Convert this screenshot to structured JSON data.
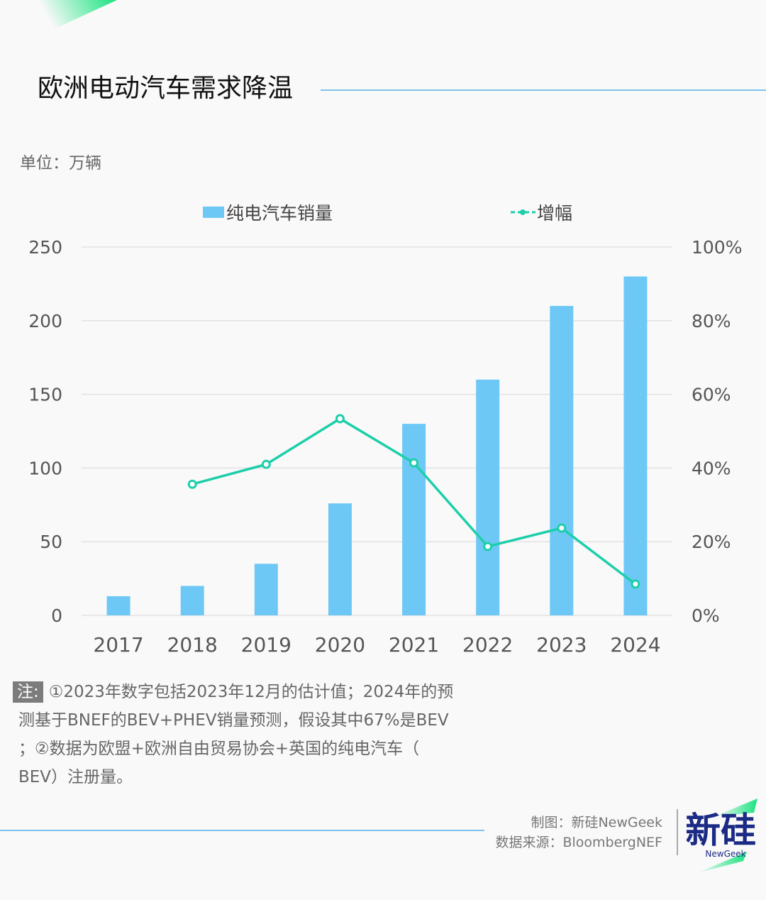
{
  "title": "欧洲电动汽车需求降温",
  "unit_label": "单位：万辆",
  "chart_data": {
    "type": "bar+line",
    "categories": [
      "2017",
      "2018",
      "2019",
      "2020",
      "2021",
      "2022",
      "2023",
      "2024"
    ],
    "series": [
      {
        "name": "纯电汽车销量",
        "type": "bar",
        "axis": "left",
        "color": "#6ec8f5",
        "values": [
          13,
          20,
          35,
          76,
          130,
          160,
          210,
          230
        ]
      },
      {
        "name": "增幅",
        "type": "line",
        "axis": "right",
        "color": "#1ccfaa",
        "values": [
          null,
          35.6,
          41,
          53.4,
          41.4,
          18.7,
          23.7,
          8.5
        ]
      }
    ],
    "y_left": {
      "ylim": [
        0,
        250
      ],
      "ticks": [
        "0",
        "50",
        "100",
        "150",
        "200",
        "250"
      ]
    },
    "y_right": {
      "ylim": [
        0,
        100
      ],
      "ticks": [
        "0%",
        "20%",
        "40%",
        "60%",
        "80%",
        "100%"
      ]
    },
    "grid": true,
    "legend": "top"
  },
  "note": {
    "label": "注:",
    "lines": [
      "①2023年数字包括2023年12月的估计值；2024年的预",
      "测基于BNEF的BEV+PHEV销量预测，假设其中67%是BEV",
      "；②数据为欧盟+欧洲自由贸易协会+英国的纯电汽车（",
      "BEV）注册量。"
    ]
  },
  "credits": {
    "made_by": "制图：新硅NewGeek",
    "source": "数据来源：BloombergNEF"
  },
  "logo": {
    "text": "新硅",
    "sub": "NewGeek"
  }
}
